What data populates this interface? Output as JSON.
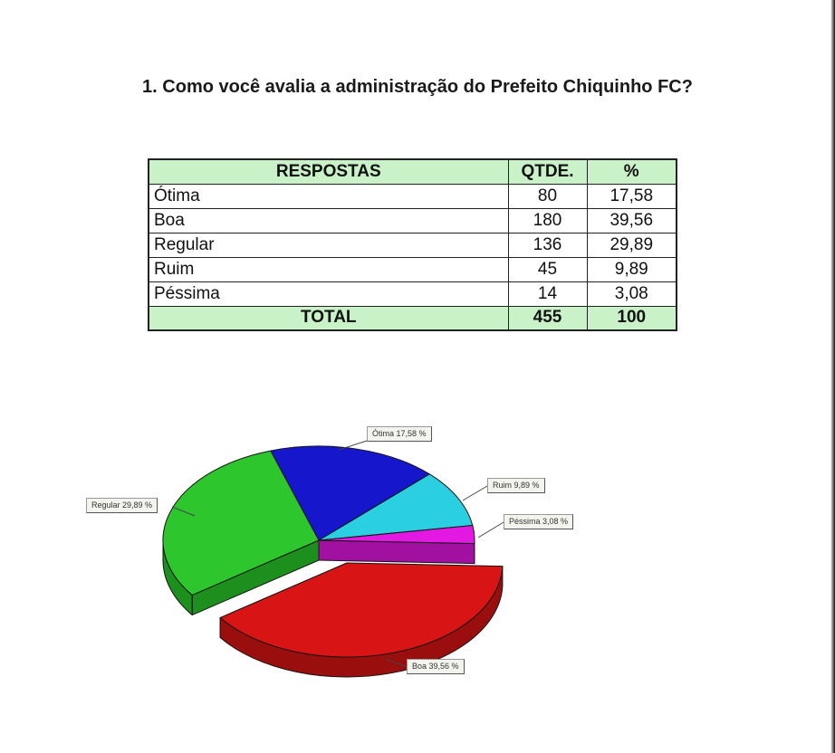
{
  "page": {
    "title": "1. Como você avalia a administração do Prefeito Chiquinho FC?"
  },
  "table": {
    "headers": [
      "RESPOSTAS",
      "QTDE.",
      "%"
    ],
    "rows": [
      [
        "Ótima",
        "80",
        "17,58"
      ],
      [
        "Boa",
        "180",
        "39,56"
      ],
      [
        "Regular",
        "136",
        "29,89"
      ],
      [
        "Ruim",
        "45",
        "9,89"
      ],
      [
        "Péssima",
        "14",
        "3,08"
      ]
    ],
    "total": {
      "label": "TOTAL",
      "qtde": "455",
      "pct": "100"
    }
  },
  "chart_data": {
    "type": "pie",
    "style": "3d-exploded-pie",
    "title": "",
    "legend": "none",
    "unit": "%",
    "slices": [
      {
        "name": "Ótima",
        "qtde": 80,
        "pct": 17.58,
        "label_text": "Ótima 17,58 %",
        "color": "#1616cc",
        "side": "#0e0e8f",
        "exploded": false
      },
      {
        "name": "Ruim",
        "qtde": 45,
        "pct": 9.89,
        "label_text": "Ruim 9,89 %",
        "color": "#2ad0e2",
        "side": "#1a97a6",
        "exploded": false
      },
      {
        "name": "Péssima",
        "qtde": 14,
        "pct": 3.08,
        "label_text": "Péssima 3,08 %",
        "color": "#e318e3",
        "side": "#a110a1",
        "exploded": false
      },
      {
        "name": "Boa",
        "qtde": 180,
        "pct": 39.56,
        "label_text": "Boa 39,56 %",
        "color": "#d91414",
        "side": "#9a0e0e",
        "exploded": true
      },
      {
        "name": "Regular",
        "qtde": 136,
        "pct": 29.89,
        "label_text": "Regular 29,89 %",
        "color": "#2dc62d",
        "side": "#1d8f1d",
        "exploded": false
      }
    ]
  },
  "colors": {
    "table_header_bg": "#c9f2c9",
    "table_border": "#222222",
    "label_box_bg": "#f4f4ee",
    "page_bg": "#ffffff"
  }
}
